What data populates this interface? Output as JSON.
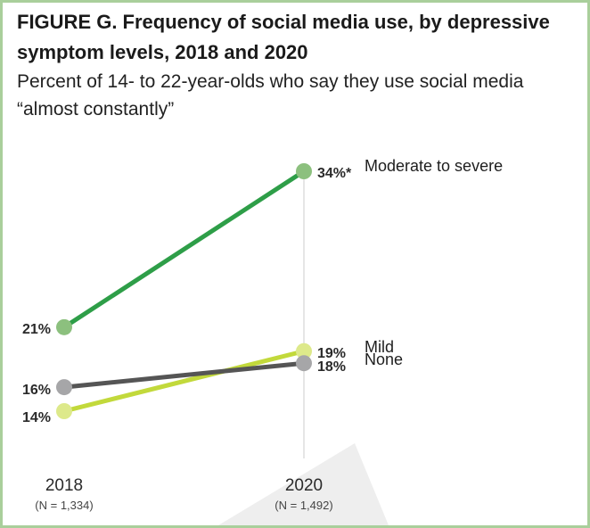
{
  "header": {
    "title_line1": "FIGURE G. Frequency of social media use, by depressive",
    "title_line2": "symptom levels, 2018 and 2020",
    "subtitle_line1": "Percent of 14- to 22-year-olds who say they use social media",
    "subtitle_line2": "“almost constantly”"
  },
  "chart_data": {
    "type": "line",
    "title": "FIGURE G. Frequency of social media use, by depressive symptom levels, 2018 and 2020",
    "subtitle": "Percent of 14- to 22-year-olds who say they use social media “almost constantly”",
    "x": [
      "2018",
      "2020"
    ],
    "x_notes": [
      "(N = 1,334)",
      "(N = 1,492)"
    ],
    "ylim": [
      14,
      34
    ],
    "series": [
      {
        "name": "Moderate to severe",
        "values": [
          21,
          34
        ],
        "labels": [
          "21%",
          "34%*"
        ],
        "color": "#2e9e48",
        "marker_color": "#8cc07e"
      },
      {
        "name": "Mild",
        "values": [
          14,
          19
        ],
        "labels": [
          "14%",
          "19%"
        ],
        "color": "#c2d93b",
        "marker_color": "#dde98a"
      },
      {
        "name": "None",
        "values": [
          16,
          18
        ],
        "labels": [
          "16%",
          "18%"
        ],
        "color": "#555555",
        "marker_color": "#a6a6a8"
      }
    ],
    "grid": false,
    "legend": "inline-right"
  },
  "colors": {
    "border": "#a9cf9b",
    "guide_line": "#cccccc",
    "watermark": "#eeeeee"
  }
}
